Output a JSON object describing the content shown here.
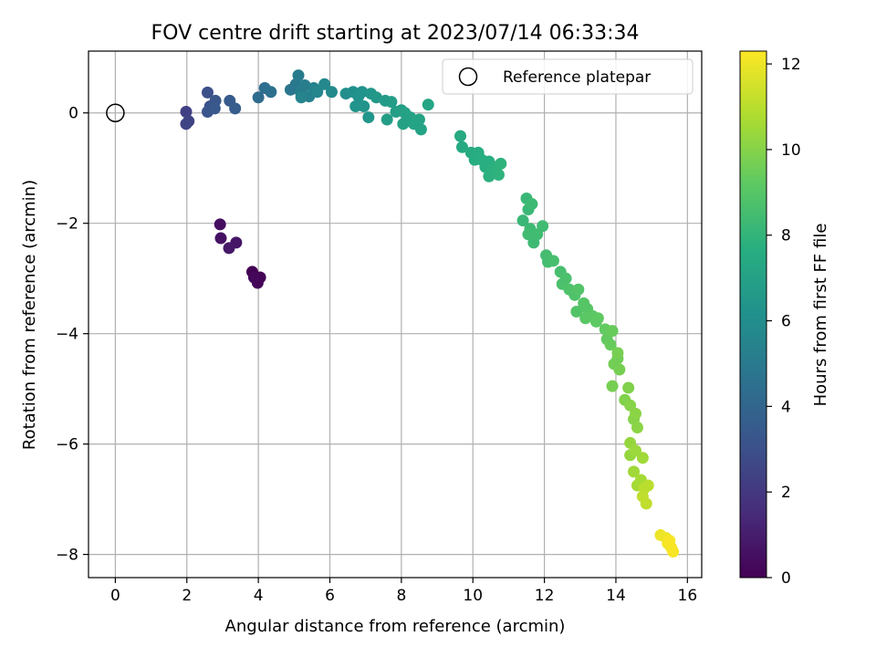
{
  "chart_data": {
    "type": "scatter",
    "title": "FOV centre drift starting at 2023/07/14 06:33:34",
    "xlabel": "Angular distance from reference (arcmin)",
    "ylabel": "Rotation from reference (arcmin)",
    "xlim": [
      -0.75,
      16.4
    ],
    "ylim": [
      -8.42,
      1.12
    ],
    "xticks": [
      0,
      2,
      4,
      6,
      8,
      10,
      12,
      14,
      16
    ],
    "xtick_labels": [
      "0",
      "2",
      "4",
      "6",
      "8",
      "10",
      "12",
      "14",
      "16"
    ],
    "yticks": [
      0,
      -2,
      -4,
      -6,
      -8
    ],
    "ytick_labels": [
      "0",
      "−2",
      "−4",
      "−6",
      "−8"
    ],
    "grid": true,
    "legend": {
      "placement": "top-right",
      "entries": [
        {
          "label": "Reference platepar",
          "marker": "open-circle",
          "color": "#000000"
        }
      ]
    },
    "reference_point": {
      "x": 0,
      "y": 0,
      "label": "Reference platepar"
    },
    "colorbar": {
      "label": "Hours from first FF file",
      "range": [
        0,
        12.3
      ],
      "ticks": [
        0,
        2,
        4,
        6,
        8,
        10,
        12
      ],
      "tick_labels": [
        "0",
        "2",
        "4",
        "6",
        "8",
        "10",
        "12"
      ],
      "colormap": "viridis"
    },
    "series": [
      {
        "color_by": "hours",
        "points": [
          {
            "x": 3.83,
            "y": -2.88,
            "h": 0.0
          },
          {
            "x": 3.93,
            "y": -2.98,
            "h": 0.05
          },
          {
            "x": 4.05,
            "y": -2.98,
            "h": 0.1
          },
          {
            "x": 3.98,
            "y": -3.08,
            "h": 0.15
          },
          {
            "x": 3.88,
            "y": -2.98,
            "h": 0.2
          },
          {
            "x": 2.93,
            "y": -2.02,
            "h": 0.5
          },
          {
            "x": 2.95,
            "y": -2.27,
            "h": 0.6
          },
          {
            "x": 3.38,
            "y": -2.35,
            "h": 0.7
          },
          {
            "x": 3.18,
            "y": -2.45,
            "h": 0.8
          },
          {
            "x": 1.98,
            "y": 0.02,
            "h": 2.3
          },
          {
            "x": 2.05,
            "y": -0.15,
            "h": 2.4
          },
          {
            "x": 1.98,
            "y": -0.2,
            "h": 2.5
          },
          {
            "x": 2.58,
            "y": 0.37,
            "h": 3.0
          },
          {
            "x": 2.65,
            "y": 0.12,
            "h": 3.1
          },
          {
            "x": 2.58,
            "y": 0.02,
            "h": 3.2
          },
          {
            "x": 2.8,
            "y": 0.22,
            "h": 3.3
          },
          {
            "x": 2.78,
            "y": 0.08,
            "h": 3.4
          },
          {
            "x": 3.2,
            "y": 0.22,
            "h": 3.5
          },
          {
            "x": 3.35,
            "y": 0.08,
            "h": 3.6
          },
          {
            "x": 4.0,
            "y": 0.28,
            "h": 4.3
          },
          {
            "x": 4.18,
            "y": 0.45,
            "h": 4.4
          },
          {
            "x": 4.35,
            "y": 0.38,
            "h": 4.5
          },
          {
            "x": 4.9,
            "y": 0.42,
            "h": 4.8
          },
          {
            "x": 5.05,
            "y": 0.52,
            "h": 4.9
          },
          {
            "x": 5.12,
            "y": 0.68,
            "h": 5.0
          },
          {
            "x": 5.18,
            "y": 0.38,
            "h": 5.1
          },
          {
            "x": 5.3,
            "y": 0.5,
            "h": 5.2
          },
          {
            "x": 5.42,
            "y": 0.3,
            "h": 5.3
          },
          {
            "x": 5.55,
            "y": 0.45,
            "h": 5.4
          },
          {
            "x": 5.2,
            "y": 0.28,
            "h": 5.5
          },
          {
            "x": 5.65,
            "y": 0.38,
            "h": 5.6
          },
          {
            "x": 5.85,
            "y": 0.52,
            "h": 5.7
          },
          {
            "x": 6.05,
            "y": 0.38,
            "h": 5.8
          },
          {
            "x": 6.45,
            "y": 0.35,
            "h": 6.0
          },
          {
            "x": 6.65,
            "y": 0.38,
            "h": 6.1
          },
          {
            "x": 6.8,
            "y": 0.3,
            "h": 6.2
          },
          {
            "x": 6.9,
            "y": 0.38,
            "h": 6.2
          },
          {
            "x": 6.72,
            "y": 0.12,
            "h": 6.3
          },
          {
            "x": 6.95,
            "y": 0.12,
            "h": 6.3
          },
          {
            "x": 7.15,
            "y": 0.35,
            "h": 6.4
          },
          {
            "x": 7.08,
            "y": -0.08,
            "h": 6.4
          },
          {
            "x": 7.3,
            "y": 0.28,
            "h": 6.5
          },
          {
            "x": 7.55,
            "y": 0.22,
            "h": 6.7
          },
          {
            "x": 7.72,
            "y": 0.2,
            "h": 6.8
          },
          {
            "x": 7.6,
            "y": -0.12,
            "h": 6.8
          },
          {
            "x": 7.85,
            "y": 0.02,
            "h": 6.9
          },
          {
            "x": 8.0,
            "y": 0.05,
            "h": 6.9
          },
          {
            "x": 8.05,
            "y": -0.2,
            "h": 7.0
          },
          {
            "x": 8.1,
            "y": 0.0,
            "h": 7.0
          },
          {
            "x": 8.25,
            "y": -0.08,
            "h": 7.0
          },
          {
            "x": 8.35,
            "y": -0.2,
            "h": 7.1
          },
          {
            "x": 8.55,
            "y": -0.3,
            "h": 7.1
          },
          {
            "x": 8.5,
            "y": -0.12,
            "h": 7.1
          },
          {
            "x": 8.75,
            "y": 0.15,
            "h": 7.2
          },
          {
            "x": 9.65,
            "y": -0.42,
            "h": 7.4
          },
          {
            "x": 9.7,
            "y": -0.62,
            "h": 7.5
          },
          {
            "x": 9.95,
            "y": -0.72,
            "h": 7.5
          },
          {
            "x": 10.05,
            "y": -0.85,
            "h": 7.6
          },
          {
            "x": 10.15,
            "y": -0.72,
            "h": 7.6
          },
          {
            "x": 10.25,
            "y": -0.85,
            "h": 7.7
          },
          {
            "x": 10.35,
            "y": -0.98,
            "h": 7.7
          },
          {
            "x": 10.45,
            "y": -0.88,
            "h": 7.7
          },
          {
            "x": 10.45,
            "y": -1.15,
            "h": 7.8
          },
          {
            "x": 10.55,
            "y": -1.02,
            "h": 7.8
          },
          {
            "x": 10.65,
            "y": -0.98,
            "h": 7.8
          },
          {
            "x": 10.72,
            "y": -1.12,
            "h": 7.9
          },
          {
            "x": 10.78,
            "y": -0.92,
            "h": 7.9
          },
          {
            "x": 11.4,
            "y": -1.95,
            "h": 8.2
          },
          {
            "x": 11.5,
            "y": -1.55,
            "h": 8.2
          },
          {
            "x": 11.55,
            "y": -1.75,
            "h": 8.2
          },
          {
            "x": 11.6,
            "y": -2.1,
            "h": 8.3
          },
          {
            "x": 11.65,
            "y": -1.65,
            "h": 8.3
          },
          {
            "x": 11.7,
            "y": -2.35,
            "h": 8.3
          },
          {
            "x": 11.8,
            "y": -2.2,
            "h": 8.4
          },
          {
            "x": 11.55,
            "y": -2.2,
            "h": 8.4
          },
          {
            "x": 11.95,
            "y": -2.05,
            "h": 8.4
          },
          {
            "x": 12.05,
            "y": -2.58,
            "h": 8.5
          },
          {
            "x": 12.1,
            "y": -2.7,
            "h": 8.5
          },
          {
            "x": 12.25,
            "y": -2.68,
            "h": 8.6
          },
          {
            "x": 12.45,
            "y": -2.88,
            "h": 8.6
          },
          {
            "x": 12.5,
            "y": -3.1,
            "h": 8.7
          },
          {
            "x": 12.6,
            "y": -3.0,
            "h": 8.7
          },
          {
            "x": 12.7,
            "y": -3.2,
            "h": 8.8
          },
          {
            "x": 12.85,
            "y": -3.3,
            "h": 8.8
          },
          {
            "x": 12.95,
            "y": -3.2,
            "h": 8.9
          },
          {
            "x": 12.9,
            "y": -3.6,
            "h": 8.9
          },
          {
            "x": 13.1,
            "y": -3.45,
            "h": 9.0
          },
          {
            "x": 13.2,
            "y": -3.55,
            "h": 9.0
          },
          {
            "x": 13.15,
            "y": -3.72,
            "h": 9.1
          },
          {
            "x": 13.35,
            "y": -3.68,
            "h": 9.1
          },
          {
            "x": 13.45,
            "y": -3.78,
            "h": 9.2
          },
          {
            "x": 13.5,
            "y": -3.72,
            "h": 9.2
          },
          {
            "x": 13.7,
            "y": -3.92,
            "h": 9.3
          },
          {
            "x": 13.75,
            "y": -4.1,
            "h": 9.3
          },
          {
            "x": 13.85,
            "y": -4.2,
            "h": 9.4
          },
          {
            "x": 13.9,
            "y": -3.95,
            "h": 9.4
          },
          {
            "x": 13.95,
            "y": -4.55,
            "h": 9.6
          },
          {
            "x": 14.05,
            "y": -4.45,
            "h": 9.6
          },
          {
            "x": 14.1,
            "y": -4.65,
            "h": 9.7
          },
          {
            "x": 14.05,
            "y": -4.35,
            "h": 9.7
          },
          {
            "x": 13.9,
            "y": -4.95,
            "h": 9.7
          },
          {
            "x": 14.25,
            "y": -5.2,
            "h": 9.9
          },
          {
            "x": 14.35,
            "y": -4.98,
            "h": 9.9
          },
          {
            "x": 14.4,
            "y": -5.3,
            "h": 10.0
          },
          {
            "x": 14.5,
            "y": -5.55,
            "h": 10.0
          },
          {
            "x": 14.55,
            "y": -5.45,
            "h": 10.1
          },
          {
            "x": 14.6,
            "y": -5.7,
            "h": 10.1
          },
          {
            "x": 14.4,
            "y": -5.98,
            "h": 10.3
          },
          {
            "x": 14.4,
            "y": -6.2,
            "h": 10.3
          },
          {
            "x": 14.55,
            "y": -6.12,
            "h": 10.4
          },
          {
            "x": 14.75,
            "y": -6.25,
            "h": 10.5
          },
          {
            "x": 14.5,
            "y": -6.5,
            "h": 10.5
          },
          {
            "x": 14.7,
            "y": -6.65,
            "h": 10.6
          },
          {
            "x": 14.6,
            "y": -6.75,
            "h": 10.6
          },
          {
            "x": 14.8,
            "y": -6.8,
            "h": 11.0
          },
          {
            "x": 14.9,
            "y": -6.75,
            "h": 11.0
          },
          {
            "x": 14.75,
            "y": -6.95,
            "h": 11.1
          },
          {
            "x": 14.85,
            "y": -7.08,
            "h": 11.1
          },
          {
            "x": 15.25,
            "y": -7.65,
            "h": 12.0
          },
          {
            "x": 15.4,
            "y": -7.7,
            "h": 12.0
          },
          {
            "x": 15.45,
            "y": -7.8,
            "h": 12.1
          },
          {
            "x": 15.55,
            "y": -7.88,
            "h": 12.1
          },
          {
            "x": 15.6,
            "y": -7.95,
            "h": 12.2
          },
          {
            "x": 15.5,
            "y": -7.75,
            "h": 12.2
          }
        ]
      }
    ]
  }
}
